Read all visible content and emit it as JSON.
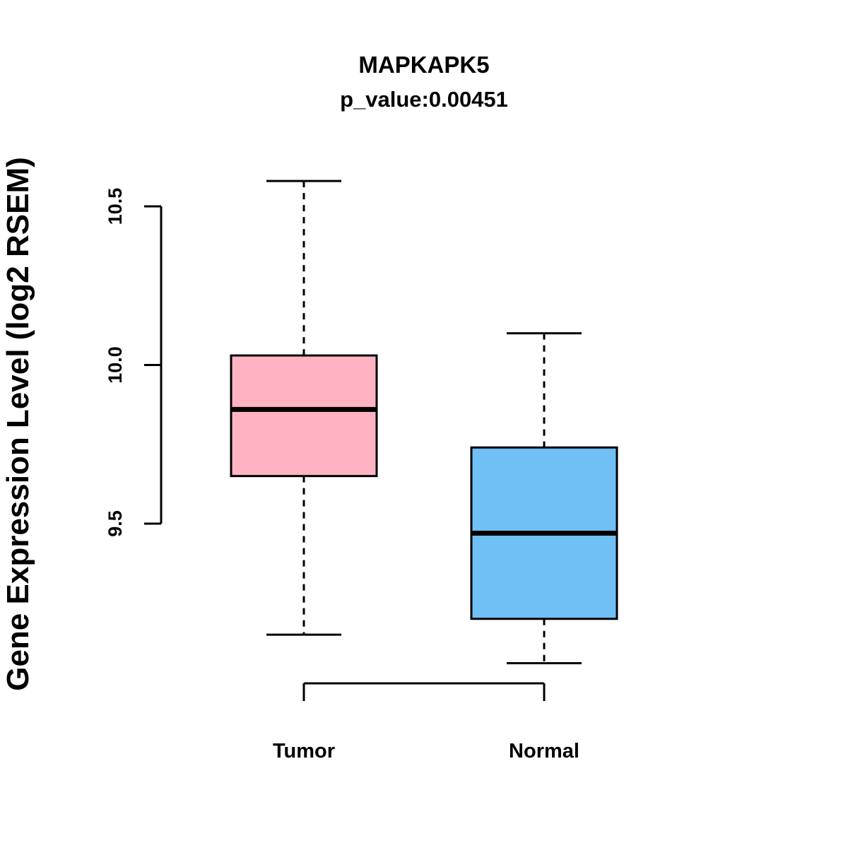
{
  "chart_data": {
    "type": "boxplot",
    "title": "MAPKAPK5",
    "subtitle": "p_value:0.00451",
    "ylabel": "Gene Expression Level (log2 RSEM)",
    "xlabel": "",
    "categories": [
      "Tumor",
      "Normal"
    ],
    "yticks": [
      9.5,
      10.0,
      10.5
    ],
    "ytick_labels": [
      "9.5",
      "10.0",
      "10.5"
    ],
    "ylim": [
      8.95,
      10.65
    ],
    "grid": false,
    "legend": "none",
    "series": [
      {
        "name": "Tumor",
        "color": "#FFB3C2",
        "lower_whisker": 9.15,
        "q1": 9.65,
        "median": 9.86,
        "q3": 10.03,
        "upper_whisker": 10.58
      },
      {
        "name": "Normal",
        "color": "#70BFF5",
        "lower_whisker": 9.06,
        "q1": 9.2,
        "median": 9.47,
        "q3": 9.74,
        "upper_whisker": 10.1
      }
    ]
  }
}
